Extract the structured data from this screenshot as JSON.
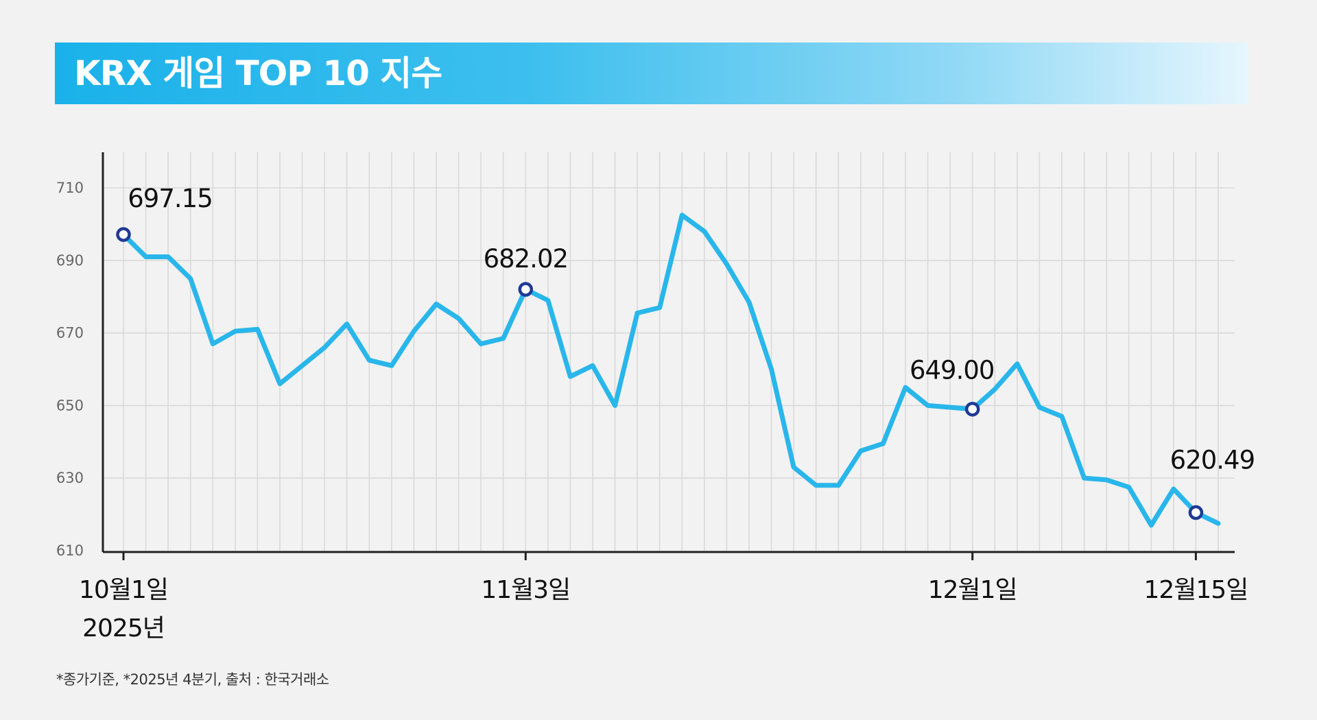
{
  "title": "KRX 게임 TOP 10 지수",
  "footnote": "*종가기준, *2025년 4분기,  출처 : 한국거래소",
  "colors": {
    "line": "#29b6ea",
    "marker": "#1f3a93",
    "title_bar": "#1ab1ea",
    "grid": "#d9d9d9",
    "axis": "#222222"
  },
  "chart_data": {
    "type": "line",
    "title": "KRX 게임 TOP 10 지수",
    "xlabel": "",
    "ylabel": "",
    "ylim": [
      610,
      710
    ],
    "yticks": [
      710,
      690,
      670,
      650,
      630,
      610
    ],
    "grid": true,
    "x_tick_labels": [
      "10월1일",
      "11월3일",
      "12월1일",
      "12월15일"
    ],
    "x_tick_index": [
      0,
      18,
      38,
      48
    ],
    "x_year_label": "2025년",
    "values": [
      697.15,
      691,
      691,
      685,
      667,
      670.5,
      671,
      656,
      661,
      666,
      672.5,
      662.5,
      661,
      670.5,
      678,
      674,
      667,
      668.5,
      682.02,
      679,
      658,
      661,
      650,
      675.5,
      677,
      702.5,
      698,
      689,
      678.5,
      660,
      633,
      628,
      628,
      637.5,
      639.5,
      655,
      650,
      649.5,
      649.0,
      654.5,
      661.5,
      649.5,
      647,
      630,
      629.5,
      627.5,
      617,
      627,
      620.49,
      617.5
    ],
    "annotations": [
      {
        "index": 0,
        "label": "697.15"
      },
      {
        "index": 18,
        "label": "682.02"
      },
      {
        "index": 38,
        "label": "649.00"
      },
      {
        "index": 48,
        "label": "620.49"
      }
    ]
  }
}
